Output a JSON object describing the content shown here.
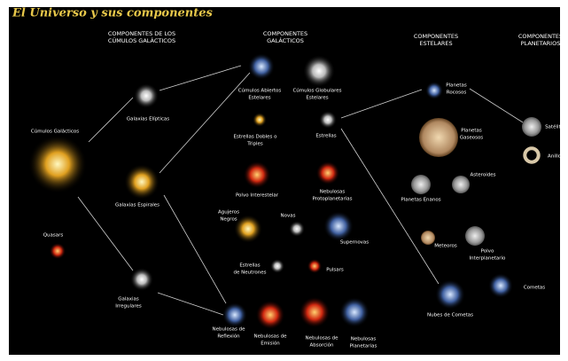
{
  "title": "El Universo y sus componentes",
  "columns": [
    [
      "COMPONENTES DE LOS",
      "CÚMULOS GALÁCTICOS"
    ],
    [
      "COMPONENTES",
      "GALÁCTICOS"
    ],
    [
      "COMPONENTES",
      "ESTELARES"
    ],
    [
      "COMPONENTES",
      "PLANETARIOS"
    ]
  ],
  "nodes": [
    {
      "label": [
        "Cúmulos Galácticos"
      ]
    },
    {
      "label": [
        "Quasars"
      ]
    },
    {
      "label": [
        "Galaxias Elípticas"
      ]
    },
    {
      "label": [
        "Galaxias Espirales"
      ]
    },
    {
      "label": [
        "Galaxias",
        "Irregulares"
      ]
    },
    {
      "label": [
        "Cúmulos Abiertos",
        "Estelares"
      ]
    },
    {
      "label": [
        "Cúmulos Globulares",
        "Estelares"
      ]
    },
    {
      "label": [
        "Estrellas Dobles o",
        "Triples"
      ]
    },
    {
      "label": [
        "Estrellas"
      ]
    },
    {
      "label": [
        "Polvo Interestelar"
      ]
    },
    {
      "label": [
        "Nebulosas",
        "Protoplanetarias"
      ]
    },
    {
      "label": [
        "Agujeros",
        "Negros"
      ]
    },
    {
      "label": [
        "Novas"
      ]
    },
    {
      "label": [
        "Supernovas"
      ]
    },
    {
      "label": [
        "Estrellas",
        "de Neutrones"
      ]
    },
    {
      "label": [
        "Pulsars"
      ]
    },
    {
      "label": [
        "Nebulosas de",
        "Reflexión"
      ]
    },
    {
      "label": [
        "Nebulosas de",
        "Emisión"
      ]
    },
    {
      "label": [
        "Nebulosas de",
        "Absorción"
      ]
    },
    {
      "label": [
        "Nebulosas",
        "Planetarias"
      ]
    },
    {
      "label": [
        "Planetas",
        "Rocosos"
      ]
    },
    {
      "label": [
        "Planetas",
        "Gaseosos"
      ]
    },
    {
      "label": [
        "Planetas Enanos"
      ]
    },
    {
      "label": [
        "Asteroides"
      ]
    },
    {
      "label": [
        "Meteoros"
      ]
    },
    {
      "label": [
        "Polvo",
        "Interplanetario"
      ]
    },
    {
      "label": [
        "Nubes de Cometas"
      ]
    },
    {
      "label": [
        "Cometas"
      ]
    },
    {
      "label": [
        "Satélites"
      ]
    },
    {
      "label": [
        "Anillos"
      ]
    }
  ]
}
